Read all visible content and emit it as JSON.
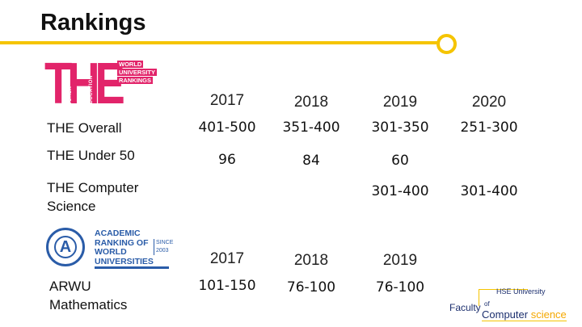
{
  "title": "Rankings",
  "colors": {
    "accent": "#f5c400",
    "the_brand": "#e2246a",
    "arwu_brand": "#2a5ca8",
    "faculty_brand": "#1c2f6e"
  },
  "the_logo": {
    "letters": "THE",
    "vertical": [
      "TIMES",
      "HIGHER",
      "EDUCATION"
    ],
    "badge": [
      "WORLD",
      "UNIVERSITY",
      "RANKINGS"
    ]
  },
  "the_table": {
    "years": [
      "2017",
      "2018",
      "2019",
      "2020"
    ],
    "rows": [
      {
        "label": "THE Overall",
        "values": [
          "401-500",
          "351-400",
          "301-350",
          "251-300"
        ]
      },
      {
        "label": "THE Under 50",
        "values": [
          "96",
          "84",
          "60",
          ""
        ]
      },
      {
        "label_line1": "THE Computer",
        "label_line2": "Science",
        "values": [
          "",
          "",
          "301-400",
          "301-400"
        ]
      }
    ]
  },
  "arwu_logo": {
    "letter": "A",
    "lines": [
      "ACADEMIC",
      "RANKING OF",
      "WORLD",
      "UNIVERSITIES"
    ],
    "since_label": "SINCE",
    "since_year": "2003"
  },
  "arwu_table": {
    "years": [
      "2017",
      "2018",
      "2019"
    ],
    "row": {
      "label_line1": "ARWU",
      "label_line2": "Mathematics",
      "values": [
        "101-150",
        "76-100",
        "76-100"
      ]
    }
  },
  "faculty_logo": {
    "university": "HSE University",
    "faculty": "Faculty",
    "of": "of",
    "computer": "Computer",
    "science": "science"
  }
}
